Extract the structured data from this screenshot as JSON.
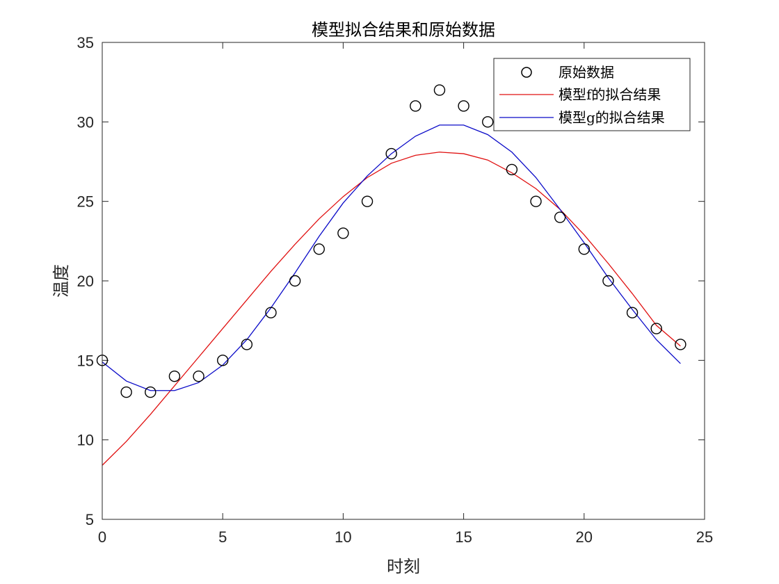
{
  "chart_data": {
    "type": "line",
    "title": "模型拟合结果和原始数据",
    "xlabel": "时刻",
    "ylabel": "温度",
    "xlim": [
      0,
      25
    ],
    "ylim": [
      5,
      35
    ],
    "xticks": [
      "0",
      "5",
      "10",
      "15",
      "20",
      "25"
    ],
    "yticks": [
      "5",
      "10",
      "15",
      "20",
      "25",
      "30",
      "35"
    ],
    "grid": false,
    "box": true,
    "legend_position": "top-right",
    "x": [
      0,
      1,
      2,
      3,
      4,
      5,
      6,
      7,
      8,
      9,
      10,
      11,
      12,
      13,
      14,
      15,
      16,
      17,
      18,
      19,
      20,
      21,
      22,
      23,
      24
    ],
    "series": [
      {
        "name": "原始数据",
        "kind": "scatter",
        "marker": "circle",
        "color": "#000000",
        "values": [
          15,
          13,
          13,
          14,
          14,
          15,
          16,
          18,
          20,
          22,
          23,
          25,
          28,
          31,
          32,
          31,
          30,
          27,
          25,
          24,
          22,
          20,
          18,
          17,
          16
        ]
      },
      {
        "name": "模型f的拟合结果",
        "kind": "line",
        "color": "#e01010",
        "values": [
          8.4,
          9.9,
          11.6,
          13.4,
          15.2,
          17.0,
          18.8,
          20.6,
          22.3,
          23.9,
          25.3,
          26.5,
          27.4,
          27.9,
          28.1,
          28.0,
          27.6,
          26.8,
          25.8,
          24.5,
          22.9,
          21.1,
          19.2,
          17.2,
          15.9
        ]
      },
      {
        "name": "模型g的拟合结果",
        "kind": "line",
        "color": "#0a0ac8",
        "values": [
          14.9,
          13.7,
          13.1,
          13.1,
          13.6,
          14.7,
          16.3,
          18.3,
          20.5,
          22.8,
          24.9,
          26.6,
          28.0,
          29.1,
          29.8,
          29.8,
          29.2,
          28.1,
          26.5,
          24.5,
          22.4,
          20.2,
          18.2,
          16.3,
          14.8
        ]
      }
    ]
  }
}
